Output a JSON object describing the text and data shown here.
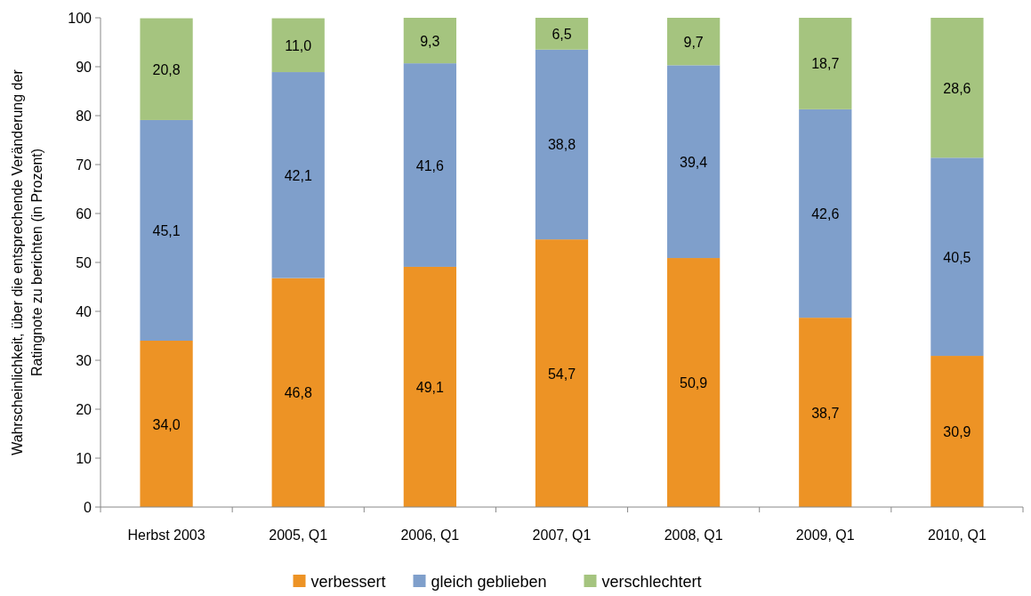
{
  "chart_data": {
    "type": "bar",
    "stacked": true,
    "ylabel": "Wahrscheinlichkeit, über die entsprechende Veränderung der Ratingnote zu berichten (in Prozent)",
    "categories": [
      "Herbst 2003",
      "2005, Q1",
      "2006, Q1",
      "2007, Q1",
      "2008, Q1",
      "2009, Q1",
      "2010, Q1"
    ],
    "series": [
      {
        "name": "verbessert",
        "color": "#ed9325",
        "values": [
          34.0,
          46.8,
          49.1,
          54.7,
          50.9,
          38.7,
          30.9
        ],
        "value_labels": [
          "34,0",
          "46,8",
          "49,1",
          "54,7",
          "50,9",
          "38,7",
          "30,9"
        ]
      },
      {
        "name": "gleich geblieben",
        "color": "#7f9fcb",
        "values": [
          45.1,
          42.1,
          41.6,
          38.8,
          39.4,
          42.6,
          40.5
        ],
        "value_labels": [
          "45,1",
          "42,1",
          "41,6",
          "38,8",
          "39,4",
          "42,6",
          "40,5"
        ]
      },
      {
        "name": "verschlechtert",
        "color": "#a5c47f",
        "values": [
          20.8,
          11.0,
          9.3,
          6.5,
          9.7,
          18.7,
          28.6
        ],
        "value_labels": [
          "20,8",
          "11,0",
          "9,3",
          "6,5",
          "9,7",
          "18,7",
          "28,6"
        ]
      }
    ],
    "ylim": [
      0,
      100
    ],
    "yticks": [
      0,
      10,
      20,
      30,
      40,
      50,
      60,
      70,
      80,
      90,
      100
    ],
    "grid": false,
    "legend": "bottom"
  }
}
